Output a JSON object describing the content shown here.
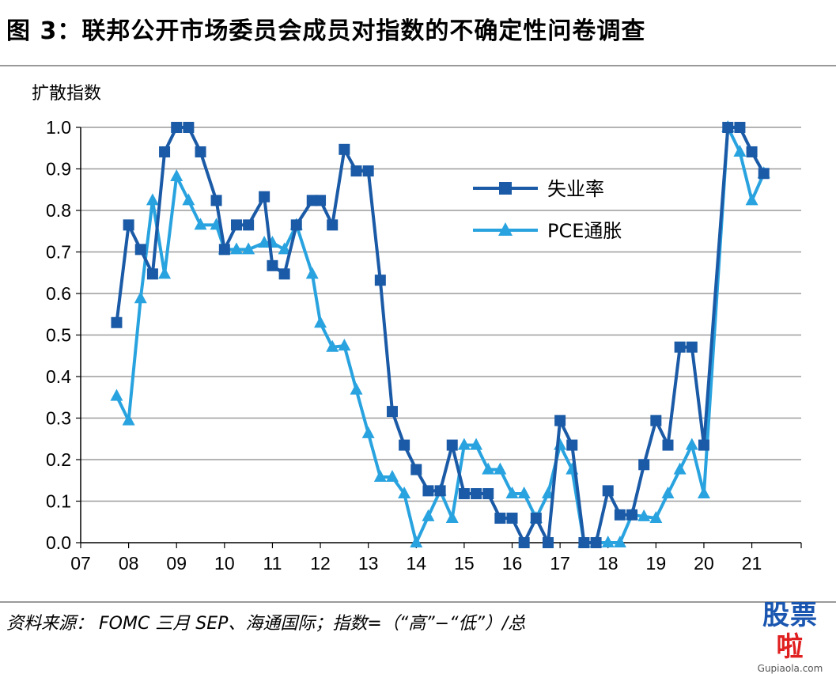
{
  "figure": {
    "title": "图 3：联邦公开市场委员会成员对指数的不确定性问卷调查",
    "source": "资料来源： FOMC 三月 SEP、海通国际；指数=（“高”−“低”）/总"
  },
  "watermark": {
    "text": "股票啦",
    "sub": "Gupiaola.com"
  },
  "chart_data": {
    "type": "line",
    "ylabel": "扩散指数",
    "xlabel": "",
    "ylim": [
      0,
      1.0
    ],
    "xlim": [
      2007,
      2022.03
    ],
    "grid": true,
    "legend_position": "top-right",
    "y_ticks": [
      "0.0",
      "0.1",
      "0.2",
      "0.3",
      "0.4",
      "0.5",
      "0.6",
      "0.7",
      "0.8",
      "0.9",
      "1.0"
    ],
    "x_ticks": [
      "07",
      "08",
      "09",
      "10",
      "11",
      "12",
      "13",
      "14",
      "15",
      "16",
      "17",
      "18",
      "19",
      "20",
      "21"
    ],
    "series": [
      {
        "name": "失业率",
        "color": "#1a5aa6",
        "marker": "square",
        "points": [
          [
            2007.75,
            0.53
          ],
          [
            2008.0,
            0.765
          ],
          [
            2008.25,
            0.706
          ],
          [
            2008.5,
            0.647
          ],
          [
            2008.75,
            0.941
          ],
          [
            2009.0,
            1.0
          ],
          [
            2009.25,
            1.0
          ],
          [
            2009.5,
            0.941
          ],
          [
            2009.83,
            0.824
          ],
          [
            2010.0,
            0.706
          ],
          [
            2010.25,
            0.765
          ],
          [
            2010.5,
            0.765
          ],
          [
            2010.83,
            0.833
          ],
          [
            2011.0,
            0.667
          ],
          [
            2011.25,
            0.647
          ],
          [
            2011.5,
            0.765
          ],
          [
            2011.83,
            0.824
          ],
          [
            2012.0,
            0.824
          ],
          [
            2012.25,
            0.765
          ],
          [
            2012.5,
            0.947
          ],
          [
            2012.75,
            0.895
          ],
          [
            2013.0,
            0.895
          ],
          [
            2013.25,
            0.632
          ],
          [
            2013.5,
            0.316
          ],
          [
            2013.75,
            0.235
          ],
          [
            2014.0,
            0.176
          ],
          [
            2014.25,
            0.125
          ],
          [
            2014.5,
            0.125
          ],
          [
            2014.75,
            0.235
          ],
          [
            2015.0,
            0.118
          ],
          [
            2015.25,
            0.118
          ],
          [
            2015.5,
            0.118
          ],
          [
            2015.75,
            0.059
          ],
          [
            2016.0,
            0.059
          ],
          [
            2016.25,
            0.0
          ],
          [
            2016.5,
            0.059
          ],
          [
            2016.75,
            0.0
          ],
          [
            2017.0,
            0.294
          ],
          [
            2017.25,
            0.235
          ],
          [
            2017.5,
            0.0
          ],
          [
            2017.75,
            0.0
          ],
          [
            2018.0,
            0.125
          ],
          [
            2018.25,
            0.067
          ],
          [
            2018.5,
            0.067
          ],
          [
            2018.75,
            0.188
          ],
          [
            2019.0,
            0.294
          ],
          [
            2019.25,
            0.235
          ],
          [
            2019.5,
            0.471
          ],
          [
            2019.75,
            0.471
          ],
          [
            2020.0,
            0.235
          ],
          [
            2020.5,
            1.0
          ],
          [
            2020.75,
            1.0
          ],
          [
            2021.0,
            0.941
          ],
          [
            2021.25,
            0.889
          ]
        ]
      },
      {
        "name": "PCE通胀",
        "color": "#29a3df",
        "marker": "triangle",
        "points": [
          [
            2007.75,
            0.353
          ],
          [
            2008.0,
            0.294
          ],
          [
            2008.25,
            0.588
          ],
          [
            2008.5,
            0.824
          ],
          [
            2008.75,
            0.647
          ],
          [
            2009.0,
            0.882
          ],
          [
            2009.25,
            0.824
          ],
          [
            2009.5,
            0.765
          ],
          [
            2009.83,
            0.765
          ],
          [
            2010.0,
            0.706
          ],
          [
            2010.25,
            0.706
          ],
          [
            2010.5,
            0.706
          ],
          [
            2010.83,
            0.722
          ],
          [
            2011.0,
            0.722
          ],
          [
            2011.25,
            0.706
          ],
          [
            2011.5,
            0.765
          ],
          [
            2011.83,
            0.647
          ],
          [
            2012.0,
            0.529
          ],
          [
            2012.25,
            0.471
          ],
          [
            2012.5,
            0.474
          ],
          [
            2012.75,
            0.368
          ],
          [
            2013.0,
            0.263
          ],
          [
            2013.25,
            0.158
          ],
          [
            2013.5,
            0.158
          ],
          [
            2013.75,
            0.118
          ],
          [
            2014.0,
            0.0
          ],
          [
            2014.25,
            0.063
          ],
          [
            2014.5,
            0.125
          ],
          [
            2014.75,
            0.059
          ],
          [
            2015.0,
            0.235
          ],
          [
            2015.25,
            0.235
          ],
          [
            2015.5,
            0.176
          ],
          [
            2015.75,
            0.176
          ],
          [
            2016.0,
            0.118
          ],
          [
            2016.25,
            0.118
          ],
          [
            2016.5,
            0.059
          ],
          [
            2016.75,
            0.118
          ],
          [
            2017.0,
            0.235
          ],
          [
            2017.25,
            0.176
          ],
          [
            2017.5,
            0.0
          ],
          [
            2017.75,
            0.0
          ],
          [
            2018.0,
            0.0
          ],
          [
            2018.25,
            0.0
          ],
          [
            2018.5,
            0.067
          ],
          [
            2018.75,
            0.063
          ],
          [
            2019.0,
            0.059
          ],
          [
            2019.25,
            0.118
          ],
          [
            2019.5,
            0.176
          ],
          [
            2019.75,
            0.235
          ],
          [
            2020.0,
            0.118
          ],
          [
            2020.5,
            1.0
          ],
          [
            2020.75,
            0.941
          ],
          [
            2021.0,
            0.824
          ],
          [
            2021.25,
            0.889
          ]
        ]
      }
    ]
  }
}
